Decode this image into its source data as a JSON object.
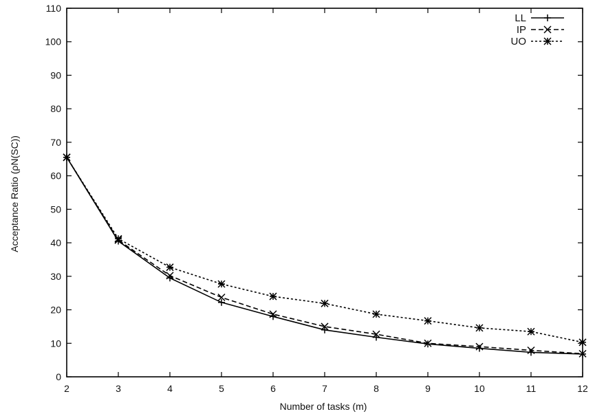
{
  "chart_data": {
    "type": "line",
    "title": "",
    "xlabel": "Number of tasks (m)",
    "ylabel": "Acceptance Ratio (ρN(SC))",
    "xlim": [
      2,
      12
    ],
    "ylim": [
      0,
      110
    ],
    "x_ticks": [
      2,
      3,
      4,
      5,
      6,
      7,
      8,
      9,
      10,
      11,
      12
    ],
    "y_ticks": [
      0,
      10,
      20,
      30,
      40,
      50,
      60,
      70,
      80,
      90,
      100,
      110
    ],
    "grid": false,
    "legend_position": "top-right",
    "x": [
      2,
      3,
      4,
      5,
      6,
      7,
      8,
      9,
      10,
      11,
      12
    ],
    "series": [
      {
        "name": "LL",
        "line_style": "solid",
        "marker": "plus",
        "values": [
          65.5,
          40.5,
          29.5,
          22.2,
          18.0,
          14.0,
          11.8,
          9.8,
          8.5,
          7.3,
          6.8
        ]
      },
      {
        "name": "IP",
        "line_style": "dashed",
        "marker": "x",
        "values": [
          65.5,
          40.8,
          30.2,
          23.7,
          18.7,
          15.0,
          12.7,
          10.0,
          9.0,
          7.9,
          6.9
        ]
      },
      {
        "name": "UO",
        "line_style": "dotted",
        "marker": "star",
        "values": [
          65.5,
          41.2,
          32.7,
          27.7,
          24.0,
          21.9,
          18.7,
          16.7,
          14.6,
          13.5,
          10.3
        ]
      }
    ]
  }
}
